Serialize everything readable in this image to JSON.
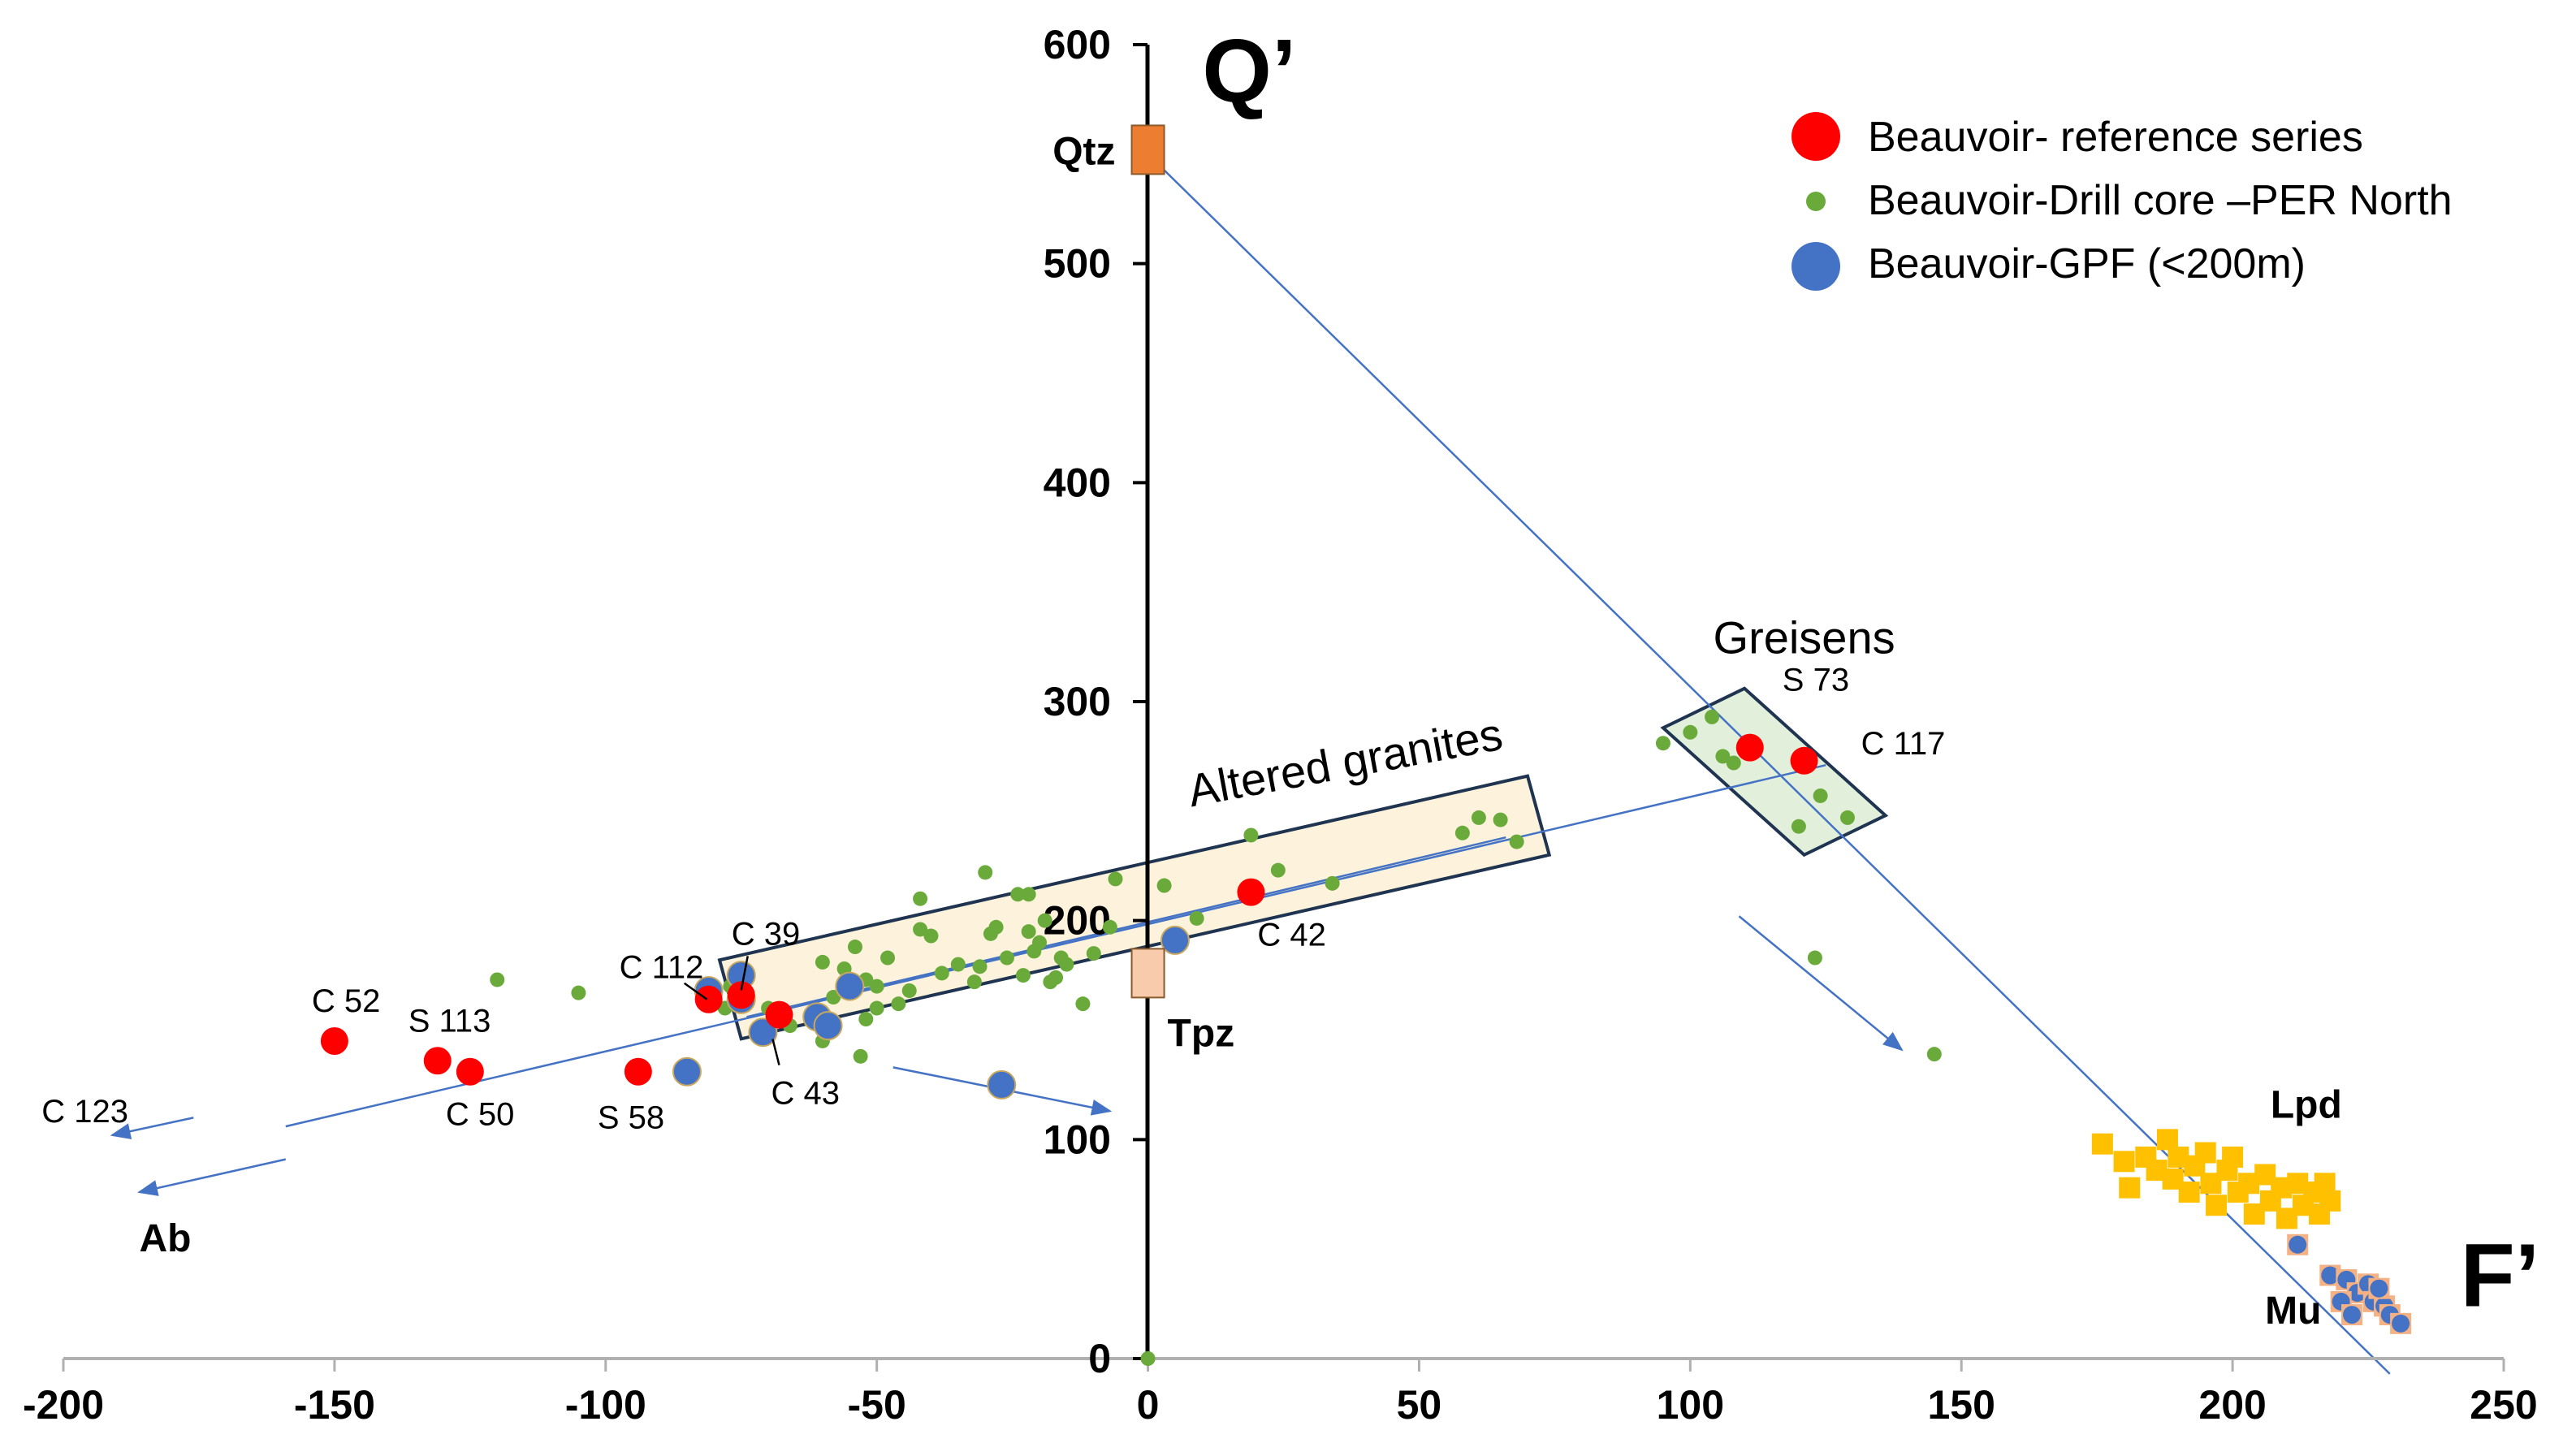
{
  "chart_data": {
    "type": "scatter",
    "title": "",
    "xlabel": "",
    "ylabel": "",
    "xlim": [
      -200,
      250
    ],
    "ylim": [
      0,
      600
    ],
    "x_ticks": [
      -200,
      -150,
      -100,
      -50,
      0,
      50,
      100,
      150,
      200,
      250
    ],
    "y_ticks": [
      0,
      100,
      200,
      300,
      400,
      500,
      600
    ],
    "grid": false,
    "legend_position": "top-right",
    "legend": [
      {
        "key": "ref",
        "label": "Beauvoir- reference series",
        "color": "#ff0000",
        "marker": "large-circle"
      },
      {
        "key": "drill",
        "label": "Beauvoir-Drill core –PER North",
        "color": "#6aaa3a",
        "marker": "small-circle"
      },
      {
        "key": "gpf",
        "label": "Beauvoir-GPF (<200m)",
        "color": "#4472c4",
        "marker": "large-circle"
      }
    ],
    "series": [
      {
        "name": "Beauvoir- reference series",
        "color": "#ff0000",
        "points": [
          {
            "x": -150,
            "y": 145,
            "label": "C 52"
          },
          {
            "x": -131,
            "y": 136,
            "label": "S 113"
          },
          {
            "x": -125,
            "y": 131,
            "label": "C 50"
          },
          {
            "x": -94,
            "y": 131,
            "label": "S 58"
          },
          {
            "x": -81,
            "y": 164,
            "label": "C 112"
          },
          {
            "x": -75,
            "y": 166,
            "label": "C 39"
          },
          {
            "x": -68,
            "y": 157,
            "label": "C 43"
          },
          {
            "x": 19,
            "y": 213,
            "label": "C 42"
          },
          {
            "x": 111,
            "y": 279,
            "label": "S 73"
          },
          {
            "x": 121,
            "y": 273,
            "label": "C 117"
          }
        ]
      },
      {
        "name": "Beauvoir-Drill core –PER North",
        "color": "#6aaa3a",
        "points": [
          {
            "x": -120,
            "y": 173
          },
          {
            "x": -105,
            "y": 167
          },
          {
            "x": -82,
            "y": 170
          },
          {
            "x": -78,
            "y": 160
          },
          {
            "x": -77,
            "y": 170
          },
          {
            "x": -70,
            "y": 160
          },
          {
            "x": -66,
            "y": 152
          },
          {
            "x": -62,
            "y": 157
          },
          {
            "x": -60,
            "y": 181
          },
          {
            "x": -60,
            "y": 145
          },
          {
            "x": -58,
            "y": 165
          },
          {
            "x": -56,
            "y": 178
          },
          {
            "x": -54,
            "y": 188
          },
          {
            "x": -52,
            "y": 173
          },
          {
            "x": -52,
            "y": 155
          },
          {
            "x": -50,
            "y": 170
          },
          {
            "x": -50,
            "y": 160
          },
          {
            "x": -48,
            "y": 183
          },
          {
            "x": -46,
            "y": 162
          },
          {
            "x": -44,
            "y": 168
          },
          {
            "x": -42,
            "y": 196
          },
          {
            "x": -42,
            "y": 210
          },
          {
            "x": -40,
            "y": 193
          },
          {
            "x": -38,
            "y": 176
          },
          {
            "x": -35,
            "y": 180
          },
          {
            "x": -32,
            "y": 172
          },
          {
            "x": -31,
            "y": 179
          },
          {
            "x": -30,
            "y": 222
          },
          {
            "x": -29,
            "y": 194
          },
          {
            "x": -28,
            "y": 197
          },
          {
            "x": -26,
            "y": 183
          },
          {
            "x": -24,
            "y": 212
          },
          {
            "x": -23,
            "y": 175
          },
          {
            "x": -22,
            "y": 212
          },
          {
            "x": -22,
            "y": 195
          },
          {
            "x": -21,
            "y": 186
          },
          {
            "x": -20,
            "y": 190
          },
          {
            "x": -19,
            "y": 200
          },
          {
            "x": -18,
            "y": 172
          },
          {
            "x": -17,
            "y": 174
          },
          {
            "x": -16,
            "y": 183
          },
          {
            "x": -15,
            "y": 180
          },
          {
            "x": -12,
            "y": 162
          },
          {
            "x": -10,
            "y": 185
          },
          {
            "x": -7,
            "y": 197
          },
          {
            "x": -6,
            "y": 219
          },
          {
            "x": 3,
            "y": 216
          },
          {
            "x": 9,
            "y": 201
          },
          {
            "x": 19,
            "y": 239
          },
          {
            "x": 24,
            "y": 223
          },
          {
            "x": 34,
            "y": 217
          },
          {
            "x": 58,
            "y": 240
          },
          {
            "x": 61,
            "y": 247
          },
          {
            "x": 65,
            "y": 246
          },
          {
            "x": 68,
            "y": 236
          },
          {
            "x": -53,
            "y": 138
          },
          {
            "x": 0,
            "y": 0
          },
          {
            "x": 95,
            "y": 281
          },
          {
            "x": 100,
            "y": 286
          },
          {
            "x": 104,
            "y": 293
          },
          {
            "x": 106,
            "y": 275
          },
          {
            "x": 108,
            "y": 272
          },
          {
            "x": 120,
            "y": 243
          },
          {
            "x": 124,
            "y": 257
          },
          {
            "x": 129,
            "y": 247
          },
          {
            "x": 123,
            "y": 183
          },
          {
            "x": 145,
            "y": 139
          }
        ]
      },
      {
        "name": "Beauvoir-GPF (<200m)",
        "color": "#4472c4",
        "points": [
          {
            "x": -85,
            "y": 131
          },
          {
            "x": -81,
            "y": 168
          },
          {
            "x": -75,
            "y": 175
          },
          {
            "x": -75,
            "y": 164
          },
          {
            "x": -71,
            "y": 149
          },
          {
            "x": -61,
            "y": 156
          },
          {
            "x": -59,
            "y": 152
          },
          {
            "x": -55,
            "y": 170
          },
          {
            "x": -27,
            "y": 125
          },
          {
            "x": 5,
            "y": 191
          }
        ]
      },
      {
        "name": "Lpd",
        "color": "#ffc000",
        "points": [
          {
            "x": 176,
            "y": 98
          },
          {
            "x": 180,
            "y": 90
          },
          {
            "x": 181,
            "y": 78
          },
          {
            "x": 184,
            "y": 92
          },
          {
            "x": 186,
            "y": 86
          },
          {
            "x": 188,
            "y": 100
          },
          {
            "x": 189,
            "y": 82
          },
          {
            "x": 190,
            "y": 92
          },
          {
            "x": 192,
            "y": 76
          },
          {
            "x": 193,
            "y": 88
          },
          {
            "x": 195,
            "y": 94
          },
          {
            "x": 196,
            "y": 80
          },
          {
            "x": 197,
            "y": 70
          },
          {
            "x": 199,
            "y": 86
          },
          {
            "x": 200,
            "y": 92
          },
          {
            "x": 201,
            "y": 76
          },
          {
            "x": 203,
            "y": 80
          },
          {
            "x": 204,
            "y": 66
          },
          {
            "x": 206,
            "y": 84
          },
          {
            "x": 207,
            "y": 72
          },
          {
            "x": 209,
            "y": 78
          },
          {
            "x": 210,
            "y": 64
          },
          {
            "x": 212,
            "y": 80
          },
          {
            "x": 213,
            "y": 70
          },
          {
            "x": 215,
            "y": 76
          },
          {
            "x": 216,
            "y": 66
          },
          {
            "x": 217,
            "y": 80
          },
          {
            "x": 218,
            "y": 72
          }
        ]
      },
      {
        "name": "Mu",
        "color": "#4472c4",
        "points": [
          {
            "x": 212,
            "y": 52
          },
          {
            "x": 218,
            "y": 38
          },
          {
            "x": 221,
            "y": 36
          },
          {
            "x": 223,
            "y": 30
          },
          {
            "x": 225,
            "y": 34
          },
          {
            "x": 226,
            "y": 26
          },
          {
            "x": 228,
            "y": 24
          },
          {
            "x": 229,
            "y": 20
          },
          {
            "x": 231,
            "y": 16
          },
          {
            "x": 220,
            "y": 26
          },
          {
            "x": 222,
            "y": 20
          },
          {
            "x": 227,
            "y": 32
          }
        ]
      }
    ],
    "end_members": [
      {
        "label": "Qtz",
        "x": 0,
        "y": 552,
        "color": "#ed7d31"
      },
      {
        "label": "Tpz",
        "x": 0,
        "y": 176,
        "color": "#f8cbad"
      }
    ],
    "lines": [
      {
        "name": "Qtz-F' line",
        "from": [
          0,
          550
        ],
        "to": [
          229,
          -7
        ]
      },
      {
        "name": "Ab trend",
        "from": [
          -159,
          106
        ],
        "to": [
          125,
          271
        ]
      },
      {
        "name": "Altered trend",
        "from": [
          -74,
          156
        ],
        "to": [
          66,
          238
        ]
      }
    ],
    "regions": [
      {
        "label": "Altered granites",
        "corners": [
          [
            -75,
            146
          ],
          [
            74,
            230
          ],
          [
            70,
            266
          ],
          [
            -79,
            182
          ]
        ],
        "fill": "#fdf3dc"
      },
      {
        "label": "Greisens",
        "corners": [
          [
            95,
            288
          ],
          [
            110,
            306
          ],
          [
            136,
            248
          ],
          [
            121,
            230
          ]
        ],
        "fill": "#e2efda"
      }
    ],
    "annotations": [
      {
        "text": "Q’",
        "x": 10,
        "y": 574
      },
      {
        "text": "F’",
        "x": 242,
        "y": 24
      },
      {
        "text": "Ab",
        "x": -186,
        "y": 49
      },
      {
        "text": "Lpd",
        "x": 207,
        "y": 110
      },
      {
        "text": "Mu",
        "x": 206,
        "y": 16
      },
      {
        "text": "C 123",
        "x": -204,
        "y": 108
      }
    ],
    "arrows": [
      {
        "from": [
          -176,
          110
        ],
        "to": [
          -191,
          102
        ]
      },
      {
        "from": [
          -159,
          91
        ],
        "to": [
          -186,
          76
        ]
      },
      {
        "from": [
          -47,
          133
        ],
        "to": [
          -7,
          113
        ]
      },
      {
        "from": [
          109,
          202
        ],
        "to": [
          139,
          141
        ]
      }
    ]
  }
}
